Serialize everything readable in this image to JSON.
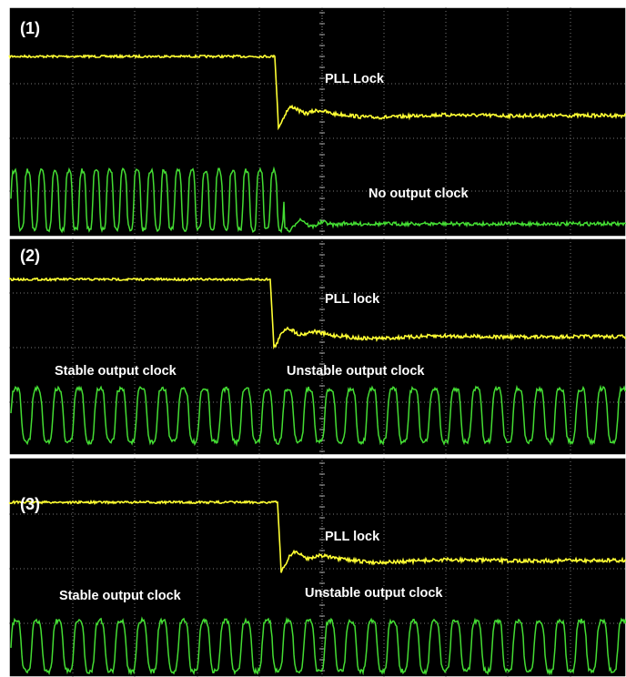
{
  "panels": [
    {
      "label": "(1)",
      "annotations": [
        "PLL Lock",
        "No output clock"
      ]
    },
    {
      "label": "(2)",
      "annotations": [
        "PLL lock",
        "Stable output clock",
        "Unstable output clock"
      ]
    },
    {
      "label": "(3)",
      "annotations": [
        "PLL lock",
        "Stable output clock",
        "Unstable output clock"
      ]
    }
  ]
}
